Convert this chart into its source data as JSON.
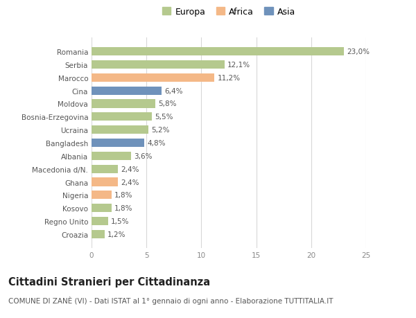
{
  "categories": [
    "Romania",
    "Serbia",
    "Marocco",
    "Cina",
    "Moldova",
    "Bosnia-Erzegovina",
    "Ucraina",
    "Bangladesh",
    "Albania",
    "Macedonia d/N.",
    "Ghana",
    "Nigeria",
    "Kosovo",
    "Regno Unito",
    "Croazia"
  ],
  "values": [
    23.0,
    12.1,
    11.2,
    6.4,
    5.8,
    5.5,
    5.2,
    4.8,
    3.6,
    2.4,
    2.4,
    1.8,
    1.8,
    1.5,
    1.2
  ],
  "colors": [
    "#b5c98e",
    "#b5c98e",
    "#f4b887",
    "#6f92bb",
    "#b5c98e",
    "#b5c98e",
    "#b5c98e",
    "#6f92bb",
    "#b5c98e",
    "#b5c98e",
    "#f4b887",
    "#f4b887",
    "#b5c98e",
    "#b5c98e",
    "#b5c98e"
  ],
  "legend_labels": [
    "Europa",
    "Africa",
    "Asia"
  ],
  "legend_colors": [
    "#b5c98e",
    "#f4b887",
    "#6f92bb"
  ],
  "title": "Cittadini Stranieri per Cittadinanza",
  "subtitle": "COMUNE DI ZANÈ (VI) - Dati ISTAT al 1° gennaio di ogni anno - Elaborazione TUTTITALIA.IT",
  "xlim": [
    0,
    25
  ],
  "xticks": [
    0,
    5,
    10,
    15,
    20,
    25
  ],
  "background_color": "#ffffff",
  "grid_color": "#d8d8d8",
  "bar_height": 0.65,
  "label_fontsize": 7.5,
  "tick_fontsize": 7.5,
  "ytick_fontsize": 7.5,
  "title_fontsize": 10.5,
  "subtitle_fontsize": 7.5,
  "legend_fontsize": 9
}
